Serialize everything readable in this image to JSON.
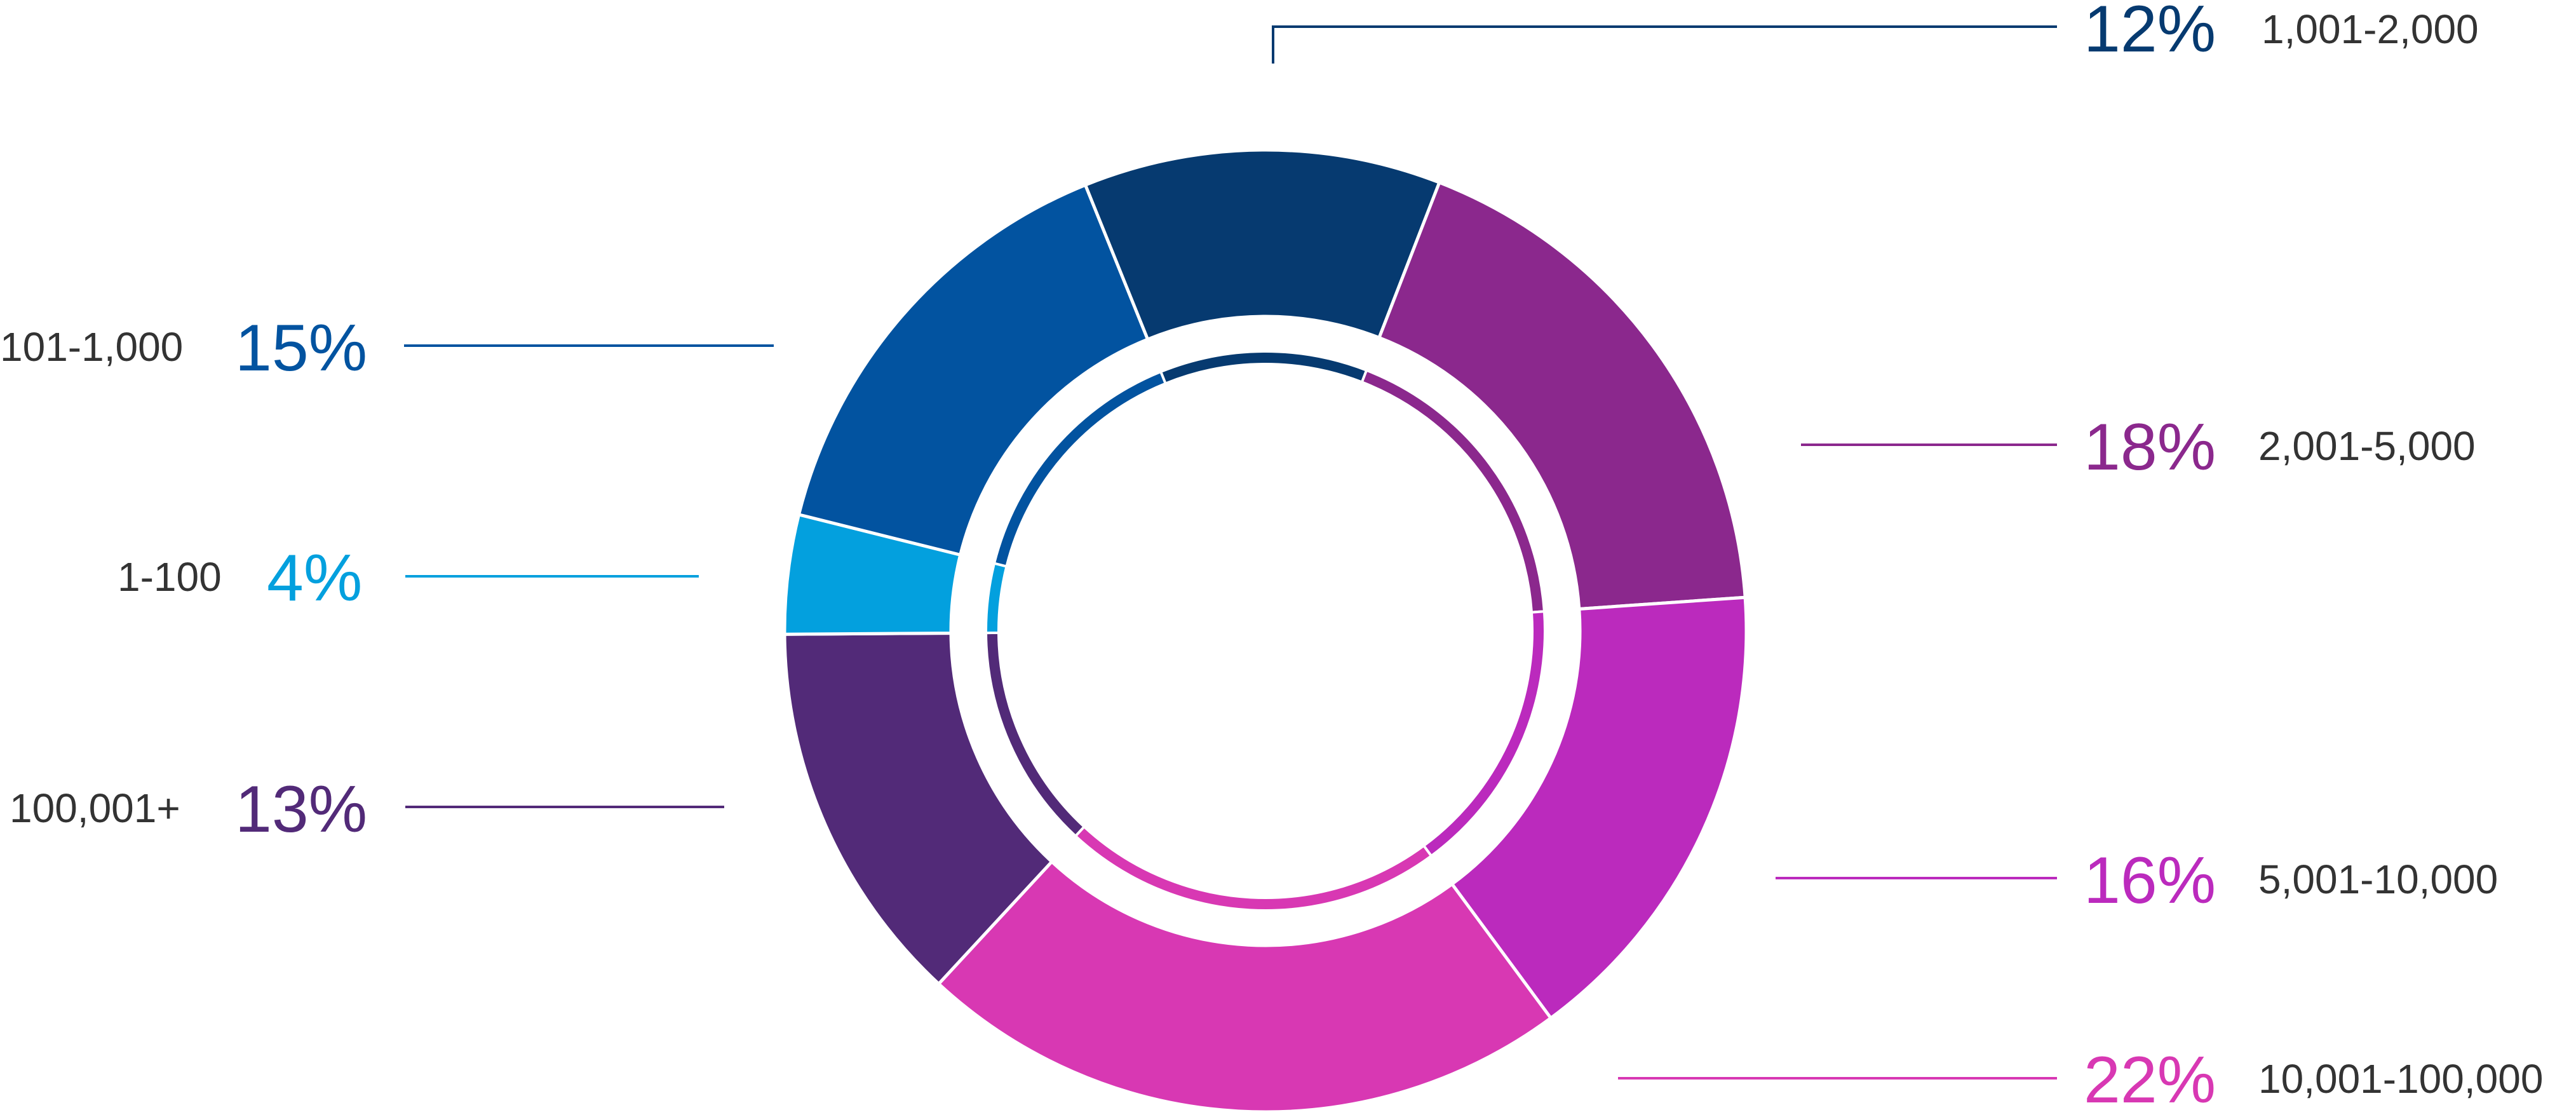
{
  "chart_data": {
    "type": "pie",
    "variant": "donut",
    "title": "",
    "categories": [
      "1,001-2,000",
      "2,001-5,000",
      "5,001-10,000",
      "10,001-100,000",
      "100,001+",
      "1-100",
      "101-1,000"
    ],
    "values": [
      12,
      18,
      16,
      22,
      13,
      4,
      15
    ],
    "unit": "%",
    "colors": [
      "#063a70",
      "#8b288d",
      "#bb2abd",
      "#d838b3",
      "#522a78",
      "#03a0de",
      "#0253a0"
    ],
    "legend_position": "callouts"
  },
  "labels": {
    "s0": {
      "pct": "12%",
      "cat": "1,001-2,000"
    },
    "s1": {
      "pct": "18%",
      "cat": "2,001-5,000"
    },
    "s2": {
      "pct": "16%",
      "cat": "5,001-10,000"
    },
    "s3": {
      "pct": "22%",
      "cat": "10,001-100,000"
    },
    "s4": {
      "pct": "13%",
      "cat": "100,001+"
    },
    "s5": {
      "pct": "4%",
      "cat": "1-100"
    },
    "s6": {
      "pct": "15%",
      "cat": "101-1,000"
    }
  }
}
